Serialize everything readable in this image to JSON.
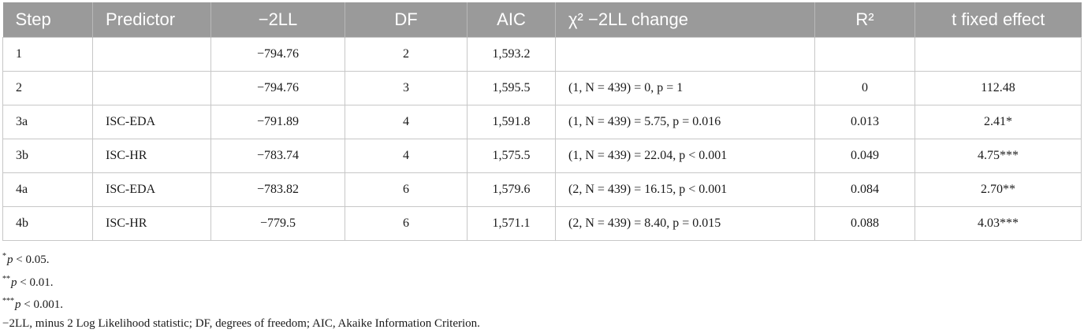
{
  "table": {
    "headers": [
      "Step",
      "Predictor",
      "−2LL",
      "DF",
      "AIC",
      "χ² −2LL change",
      "R²",
      "t fixed effect"
    ],
    "rows": [
      [
        "1",
        "",
        "−794.76",
        "2",
        "1,593.2",
        "",
        "",
        ""
      ],
      [
        "2",
        "",
        "−794.76",
        "3",
        "1,595.5",
        "(1, N = 439) = 0, p = 1",
        "0",
        "112.48"
      ],
      [
        "3a",
        "ISC-EDA",
        "−791.89",
        "4",
        "1,591.8",
        "(1, N = 439) = 5.75, p = 0.016",
        "0.013",
        "2.41*"
      ],
      [
        "3b",
        "ISC-HR",
        "−783.74",
        "4",
        "1,575.5",
        "(1, N = 439) = 22.04, p < 0.001",
        "0.049",
        "4.75***"
      ],
      [
        "4a",
        "ISC-EDA",
        "−783.82",
        "6",
        "1,579.6",
        "(2, N = 439) = 16.15, p < 0.001",
        "0.084",
        "2.70**"
      ],
      [
        "4b",
        "ISC-HR",
        "−779.5",
        "6",
        "1,571.1",
        "(2, N = 439) = 8.40, p = 0.015",
        "0.088",
        "4.03***"
      ]
    ]
  },
  "footnotes": [
    {
      "stars": "*",
      "p": "p",
      "text": " < 0.05."
    },
    {
      "stars": "**",
      "p": "p",
      "text": " < 0.01."
    },
    {
      "stars": "***",
      "p": "p",
      "text": " < 0.001."
    }
  ],
  "abbreviations": "−2LL, minus 2 Log Likelihood statistic; DF, degrees of freedom; AIC, Akaike Information Criterion."
}
